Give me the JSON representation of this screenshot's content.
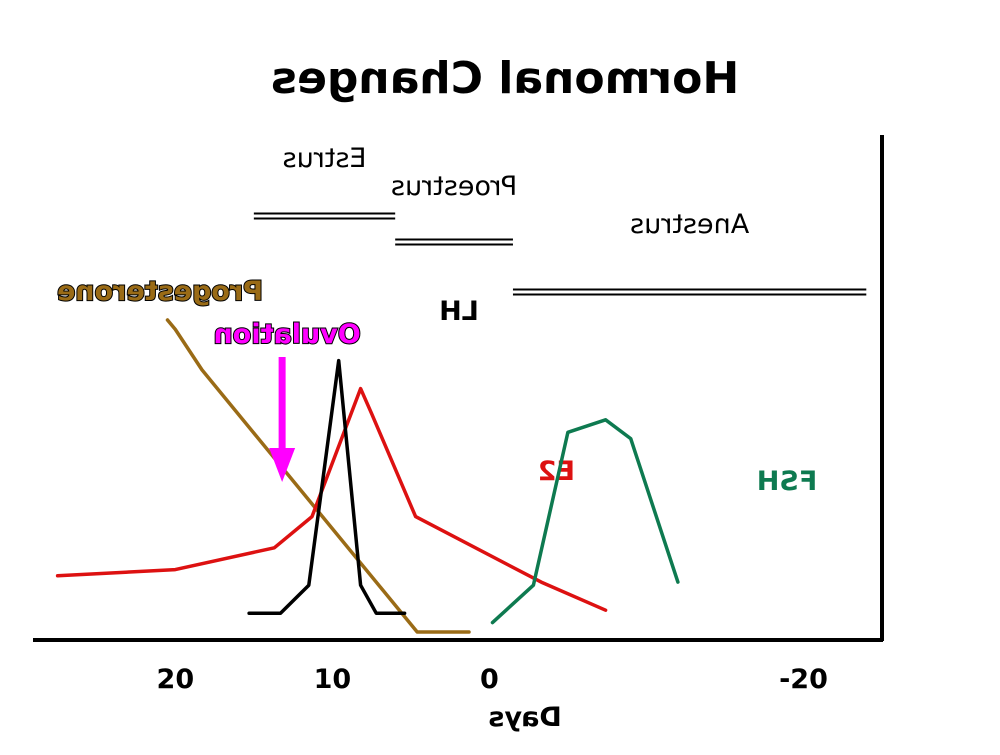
{
  "chart_data": {
    "type": "line",
    "title": "Hormonal Changes",
    "xlabel": "Days",
    "ylabel": "",
    "x_direction": "reversed",
    "xlim": [
      -25,
      29
    ],
    "x_ticks": [
      {
        "value": 20,
        "label": "20"
      },
      {
        "value": 10,
        "label": "10"
      },
      {
        "value": 0,
        "label": "0"
      },
      {
        "value": -20,
        "label": "-20"
      }
    ],
    "ylim": [
      0,
      100
    ],
    "phases": [
      {
        "name": "Estrus",
        "start": 15,
        "end": 6
      },
      {
        "name": "Proestrus",
        "start": 6,
        "end": -1.5
      },
      {
        "name": "Anestrus",
        "start": -1.5,
        "end": -24
      }
    ],
    "series": [
      {
        "name": "Progesterone",
        "color": "#9a6b16",
        "points": [
          [
            20.5,
            100
          ],
          [
            20,
            97
          ],
          [
            18.3,
            84
          ],
          [
            4.6,
            0
          ],
          [
            1.3,
            0
          ]
        ]
      },
      {
        "name": "E2",
        "color": "#dd1111",
        "points": [
          [
            27.5,
            18
          ],
          [
            20,
            20
          ],
          [
            13.7,
            27
          ],
          [
            11.3,
            37
          ],
          [
            8.2,
            78
          ],
          [
            7.5,
            70
          ],
          [
            4.7,
            37
          ],
          [
            -3.3,
            16
          ],
          [
            -7.4,
            7
          ]
        ]
      },
      {
        "name": "LH",
        "color": "#000000",
        "points": [
          [
            15.3,
            6
          ],
          [
            13.3,
            6
          ],
          [
            11.5,
            15
          ],
          [
            9.6,
            87
          ],
          [
            8.2,
            15
          ],
          [
            7.2,
            6
          ],
          [
            5.4,
            6
          ]
        ]
      },
      {
        "name": "FSH",
        "color": "#0e7a50",
        "points": [
          [
            -0.2,
            3
          ],
          [
            -2.8,
            15
          ],
          [
            -5,
            64
          ],
          [
            -7.4,
            68
          ],
          [
            -9,
            62
          ],
          [
            -12,
            16
          ]
        ]
      }
    ],
    "annotations": [
      {
        "text": "Ovulation",
        "color": "#ff00ff",
        "x": 13.2
      }
    ]
  }
}
